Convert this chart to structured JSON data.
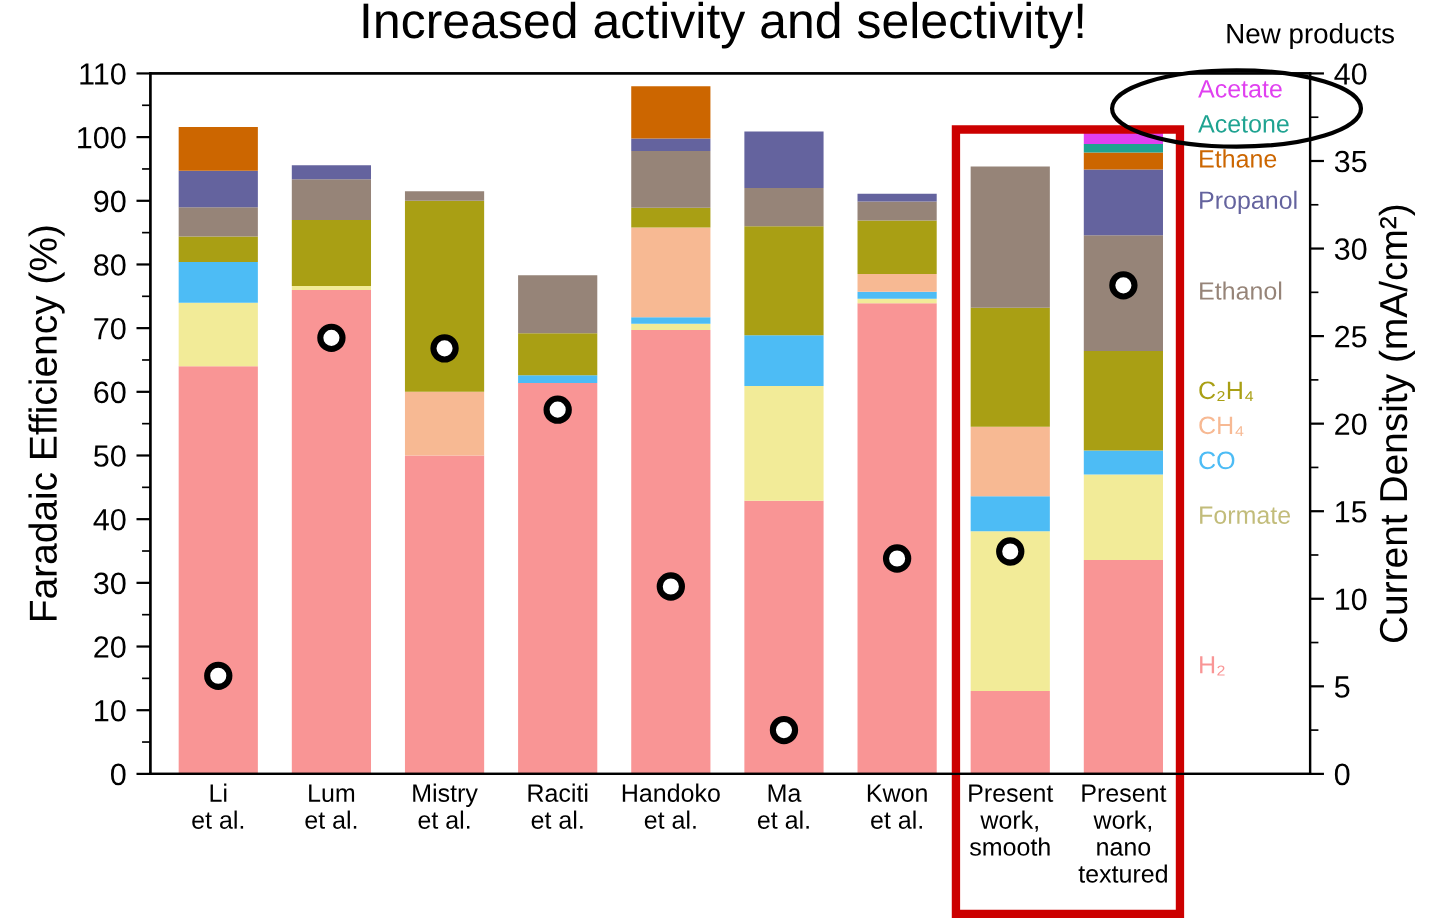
{
  "chart_data": {
    "type": "bar",
    "stacked": true,
    "title": "Increased activity and selectivity!",
    "ylabel": "Faradaic Efficiency (%)",
    "y2label": "Current Density (mA/cm²)",
    "annotations": [
      "New products"
    ],
    "categories": [
      "Li\net al.",
      "Lum\net al.",
      "Mistry\net al.",
      "Raciti\net al.",
      "Handoko\net al.",
      "Ma\net al.",
      "Kwon\net al.",
      "Present\nwork,\nsmooth",
      "Present\nwork,\nnano\ntextured"
    ],
    "series": [
      {
        "name": "H₂",
        "color": "#f99595",
        "values": [
          64,
          76,
          50,
          61.4,
          69.7,
          42.9,
          73.9,
          13,
          33.6
        ]
      },
      {
        "name": "Formate",
        "color": "#f2eb98",
        "values": [
          10,
          0.6,
          null,
          null,
          1,
          18,
          0.7,
          25.1,
          13.4
        ]
      },
      {
        "name": "CO",
        "color": "#4dbcf5",
        "values": [
          6.4,
          null,
          null,
          1.2,
          1,
          8,
          1.1,
          5.5,
          3.8
        ]
      },
      {
        "name": "CH₄",
        "color": "#f7b993",
        "values": [
          null,
          null,
          10,
          null,
          14.1,
          null,
          2.8,
          10.9,
          null
        ]
      },
      {
        "name": "C₂H₄",
        "color": "#a99f14",
        "values": [
          4,
          10.4,
          30,
          6.6,
          3.1,
          17.1,
          8.4,
          18.7,
          15.6
        ]
      },
      {
        "name": "Ethanol",
        "color": "#968478",
        "values": [
          4.6,
          6.4,
          1.5,
          9.1,
          8.9,
          6,
          3,
          22.2,
          18.2
        ]
      },
      {
        "name": "Propanol",
        "color": "#64639e",
        "values": [
          5.7,
          2.2,
          null,
          null,
          2,
          8.9,
          1.2,
          null,
          10.3
        ]
      },
      {
        "name": "Ethane",
        "color": "#cc6600",
        "values": [
          6.9,
          null,
          null,
          null,
          8.2,
          null,
          null,
          null,
          2.7
        ]
      },
      {
        "name": "Acetone",
        "color": "#1fa391",
        "values": [
          null,
          null,
          null,
          null,
          null,
          null,
          null,
          null,
          1.3
        ]
      },
      {
        "name": "Acetate",
        "color": "#e040f0",
        "values": [
          null,
          null,
          null,
          null,
          null,
          null,
          null,
          null,
          2
        ]
      },
      {
        "type": "scatter",
        "axis": "y2",
        "marker": "circle",
        "color": "#ffffff",
        "values": [
          5.6,
          24.9,
          24.3,
          20.8,
          10.7,
          2.5,
          12.3,
          12.7,
          27.9
        ]
      }
    ],
    "ylim": [
      0,
      110
    ],
    "yticks": [
      0,
      10,
      20,
      30,
      40,
      50,
      60,
      70,
      80,
      90,
      100,
      110
    ],
    "y2lim": [
      0,
      40
    ],
    "y2ticks": [
      0,
      5,
      10,
      15,
      20,
      25,
      30,
      35,
      40
    ],
    "grid": false,
    "legend": false
  }
}
